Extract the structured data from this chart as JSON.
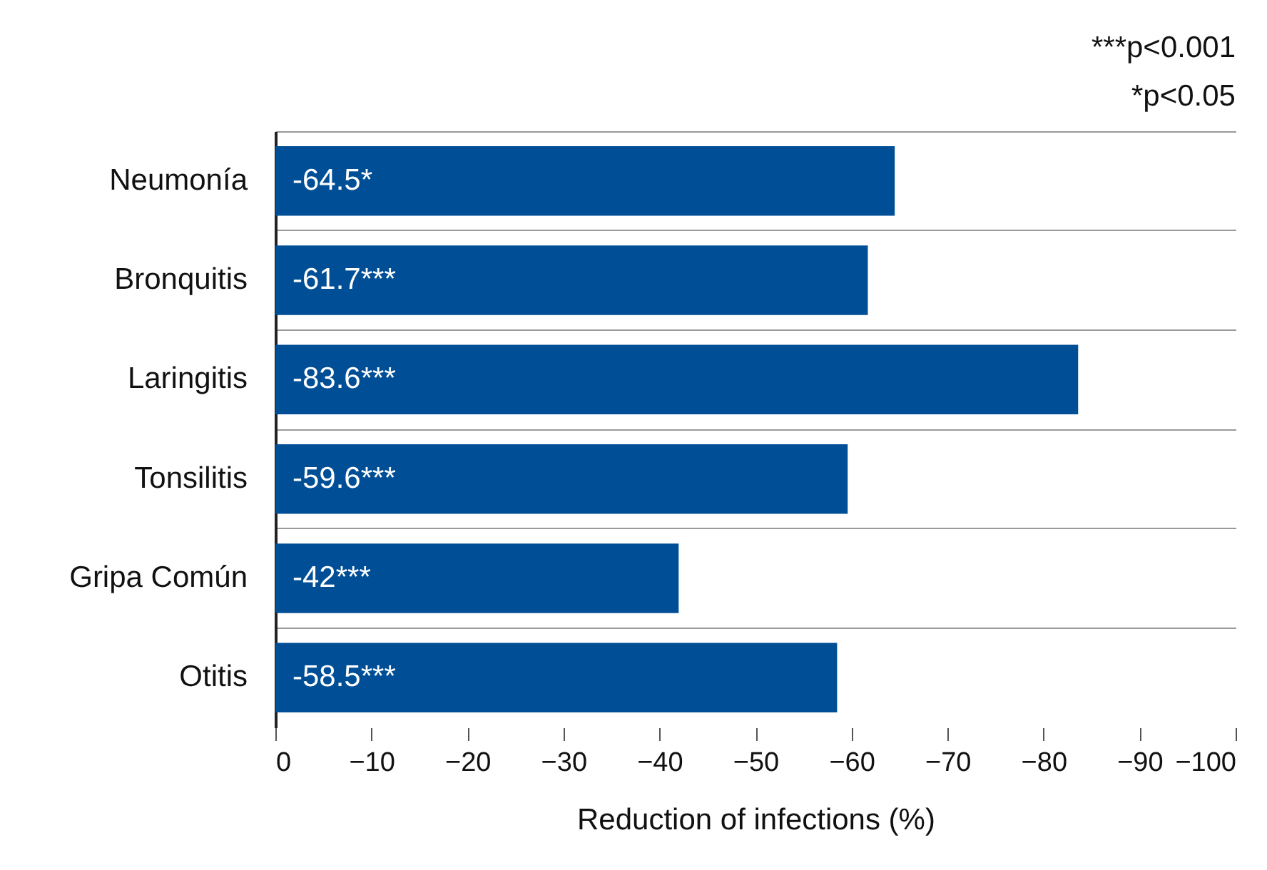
{
  "chart_data": {
    "type": "bar",
    "orientation": "horizontal",
    "categories": [
      "Neumonía",
      "Bronquitis",
      "Laringitis",
      "Tonsilitis",
      "Gripa Común",
      "Otitis"
    ],
    "values": [
      -64.5,
      -61.7,
      -83.6,
      -59.6,
      -42,
      -58.5
    ],
    "value_labels": [
      "-64.5*",
      "-61.7***",
      "-83.6***",
      "-59.6***",
      "-42***",
      "-58.5***"
    ],
    "color": "#004f96",
    "xlim": [
      0,
      -100
    ],
    "xticks": [
      0,
      -10,
      -20,
      -30,
      -40,
      -50,
      -60,
      -70,
      -80,
      -90,
      -100
    ],
    "xlabel": "Reduction of infections (%)",
    "annotations": [
      "***p<0.001",
      "*p<0.05"
    ],
    "grid": "y"
  }
}
